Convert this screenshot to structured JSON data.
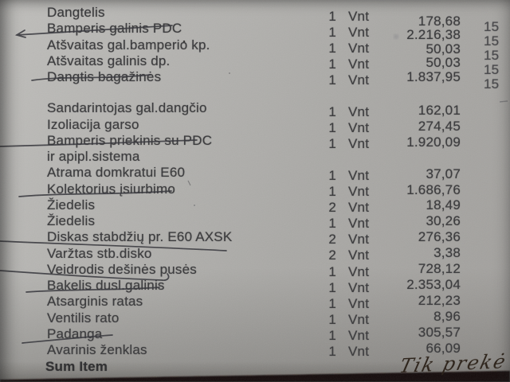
{
  "document_kind": "printed parts invoice photo",
  "table": {
    "items": [
      {
        "name": "Dangtelis",
        "qty": "1",
        "unit": "Vnt",
        "price": "178,68",
        "vat": "15",
        "underlined": false
      },
      {
        "name": "Bamperis galinis PDC",
        "qty": "1",
        "unit": "Vnt",
        "price": "2.216,38",
        "vat": "15",
        "underlined": true
      },
      {
        "name": "Atšvaitas gal.bamperio kp.",
        "qty": "1",
        "unit": "Vnt",
        "price": "50,03",
        "vat": "15",
        "underlined": false
      },
      {
        "name": "Atšvaitas galinis dp.",
        "qty": "1",
        "unit": "Vnt",
        "price": "50,03",
        "vat": "15",
        "underlined": false
      },
      {
        "name": "Dangtis bagažinės",
        "qty": "1",
        "unit": "Vnt",
        "price": "1.837,95",
        "vat": "15",
        "underlined": true
      },
      {
        "name": "Sandarintojas gal.dangčio",
        "qty": "1",
        "unit": "Vnt",
        "price": "162,01",
        "vat": "",
        "underlined": false,
        "gap_before": true
      },
      {
        "name": "Izoliacija garso",
        "qty": "1",
        "unit": "Vnt",
        "price": "274,45",
        "vat": "",
        "underlined": false
      },
      {
        "name": "Bamperis priekinis su PDC",
        "qty": "1",
        "unit": "Vnt",
        "price": "1.920,09",
        "vat": "",
        "underlined": true
      },
      {
        "name": "ir apipl.sistema",
        "qty": "",
        "unit": "",
        "price": "",
        "vat": "",
        "underlined": false,
        "continuation": true
      },
      {
        "name": "Atrama domkratui E60",
        "qty": "1",
        "unit": "Vnt",
        "price": "37,07",
        "vat": "",
        "underlined": false
      },
      {
        "name": "Kolektorius įsiurbimo",
        "qty": "1",
        "unit": "Vnt",
        "price": "1.686,76",
        "vat": "",
        "underlined": true
      },
      {
        "name": "Žiedelis",
        "qty": "2",
        "unit": "Vnt",
        "price": "18,49",
        "vat": "",
        "underlined": false
      },
      {
        "name": "Žiedelis",
        "qty": "1",
        "unit": "Vnt",
        "price": "30,26",
        "vat": "",
        "underlined": false
      },
      {
        "name": "Diskas stabdžių pr. E60 AXSK",
        "qty": "2",
        "unit": "Vnt",
        "price": "276,36",
        "vat": "",
        "underlined": false
      },
      {
        "name": "Varžtas stb.disko",
        "qty": "2",
        "unit": "Vnt",
        "price": "3,38",
        "vat": "",
        "underlined": true
      },
      {
        "name": "Veidrodis dešinės pusės",
        "qty": "1",
        "unit": "Vnt",
        "price": "728,12",
        "vat": "",
        "underlined": true
      },
      {
        "name": "Bakelis dusl.galinis",
        "qty": "1",
        "unit": "Vnt",
        "price": "2.353,04",
        "vat": "",
        "underlined": true
      },
      {
        "name": "Atsarginis ratas",
        "qty": "1",
        "unit": "Vnt",
        "price": "212,23",
        "vat": "",
        "underlined": false
      },
      {
        "name": "Ventilis rato",
        "qty": "1",
        "unit": "Vnt",
        "price": "8,96",
        "vat": "",
        "underlined": false
      },
      {
        "name": "Padanga",
        "qty": "1",
        "unit": "Vnt",
        "price": "305,57",
        "vat": "",
        "underlined": true
      },
      {
        "name": "Avarinis ženklas",
        "qty": "1",
        "unit": "Vnt",
        "price": "66,09",
        "vat": "",
        "underlined": false
      }
    ],
    "footer_label": "Sum Item"
  },
  "handwriting": {
    "note": "Tik prekė"
  },
  "colors": {
    "paper": "#aaa9a6",
    "print_ink": "#38383a",
    "pen_ink": "#35353a",
    "handwriting_ink": "#281e15",
    "bottom_strip": "#14100c"
  }
}
